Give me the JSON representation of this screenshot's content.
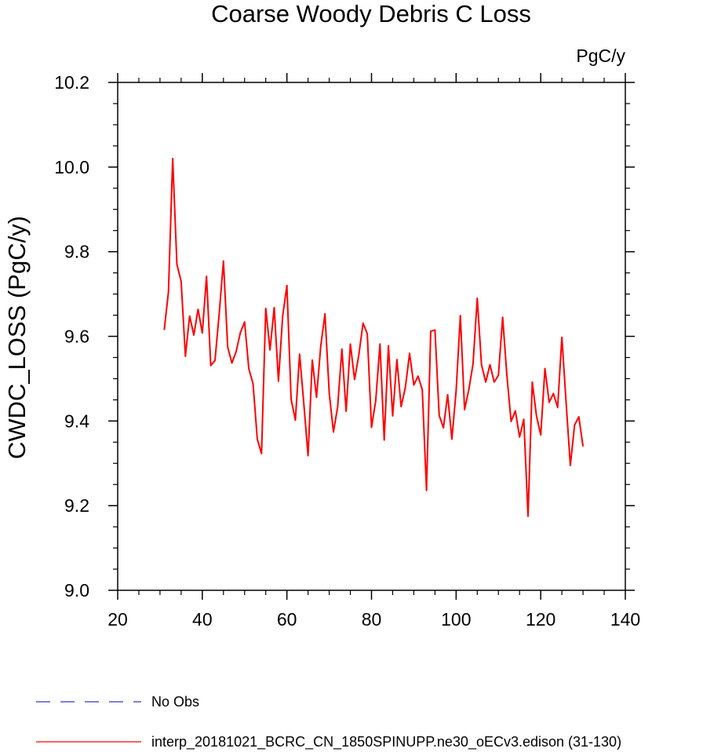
{
  "chart_data": {
    "type": "line",
    "title": "Coarse Woody Debris C Loss",
    "units": "PgC/y",
    "xlabel": "",
    "ylabel": "CWDC_LOSS  (PgC/y)",
    "xlim": [
      20,
      140
    ],
    "ylim": [
      9.0,
      10.2
    ],
    "xticks": [
      20,
      40,
      60,
      80,
      100,
      120,
      140
    ],
    "xtick_labels": [
      "20",
      "40",
      "60",
      "80",
      "100",
      "120",
      "140"
    ],
    "yticks": [
      9.0,
      9.2,
      9.4,
      9.6,
      9.8,
      10.0,
      10.2
    ],
    "ytick_labels": [
      "9.0",
      "9.2",
      "9.4",
      "9.6",
      "9.8",
      "10.0",
      "10.2"
    ],
    "x_minor_step": 5,
    "y_minor_step": 0.05,
    "series": [
      {
        "name": "interp_20181021_BCRC_CN_1850SPINUPP.ne30_oECv3.edison (31-130)",
        "color": "#ff0000",
        "style": "solid",
        "x": [
          31,
          32,
          33,
          34,
          35,
          36,
          37,
          38,
          39,
          40,
          41,
          42,
          43,
          44,
          45,
          46,
          47,
          48,
          49,
          50,
          51,
          52,
          53,
          54,
          55,
          56,
          57,
          58,
          59,
          60,
          61,
          62,
          63,
          64,
          65,
          66,
          67,
          68,
          69,
          70,
          71,
          72,
          73,
          74,
          75,
          76,
          77,
          78,
          79,
          80,
          81,
          82,
          83,
          84,
          85,
          86,
          87,
          88,
          89,
          90,
          91,
          92,
          93,
          94,
          95,
          96,
          97,
          98,
          99,
          100,
          101,
          102,
          103,
          104,
          105,
          106,
          107,
          108,
          109,
          110,
          111,
          112,
          113,
          114,
          115,
          116,
          117,
          118,
          119,
          120,
          121,
          122,
          123,
          124,
          125,
          126,
          127,
          128,
          129,
          130
        ],
        "values": [
          9.615,
          9.705,
          10.02,
          9.77,
          9.73,
          9.553,
          9.648,
          9.603,
          9.664,
          9.608,
          9.742,
          9.531,
          9.543,
          9.654,
          9.778,
          9.575,
          9.537,
          9.564,
          9.609,
          9.634,
          9.523,
          9.488,
          9.357,
          9.323,
          9.666,
          9.568,
          9.668,
          9.494,
          9.648,
          9.72,
          9.451,
          9.402,
          9.558,
          9.441,
          9.318,
          9.544,
          9.456,
          9.577,
          9.653,
          9.467,
          9.374,
          9.434,
          9.57,
          9.423,
          9.582,
          9.498,
          9.556,
          9.631,
          9.606,
          9.385,
          9.448,
          9.582,
          9.355,
          9.578,
          9.412,
          9.545,
          9.434,
          9.479,
          9.56,
          9.485,
          9.506,
          9.474,
          9.236,
          9.612,
          9.615,
          9.413,
          9.384,
          9.462,
          9.357,
          9.471,
          9.649,
          9.427,
          9.474,
          9.535,
          9.69,
          9.533,
          9.492,
          9.533,
          9.492,
          9.508,
          9.645,
          9.508,
          9.399,
          9.424,
          9.362,
          9.404,
          9.175,
          9.492,
          9.412,
          9.367,
          9.524,
          9.444,
          9.465,
          9.432,
          9.598,
          9.444,
          9.295,
          9.39,
          9.41,
          9.34
        ]
      },
      {
        "name": "No Obs",
        "color": "#3333cc",
        "style": "dashed",
        "x": [],
        "values": []
      }
    ],
    "legend": [
      {
        "label": "No Obs",
        "color": "#3333cc",
        "style": "dashed"
      },
      {
        "label": "interp_20181021_BCRC_CN_1850SPINUPP.ne30_oECv3.edison (31-130)",
        "color": "#ff0000",
        "style": "solid"
      }
    ],
    "legend_position": "bottom-left",
    "grid": false
  }
}
